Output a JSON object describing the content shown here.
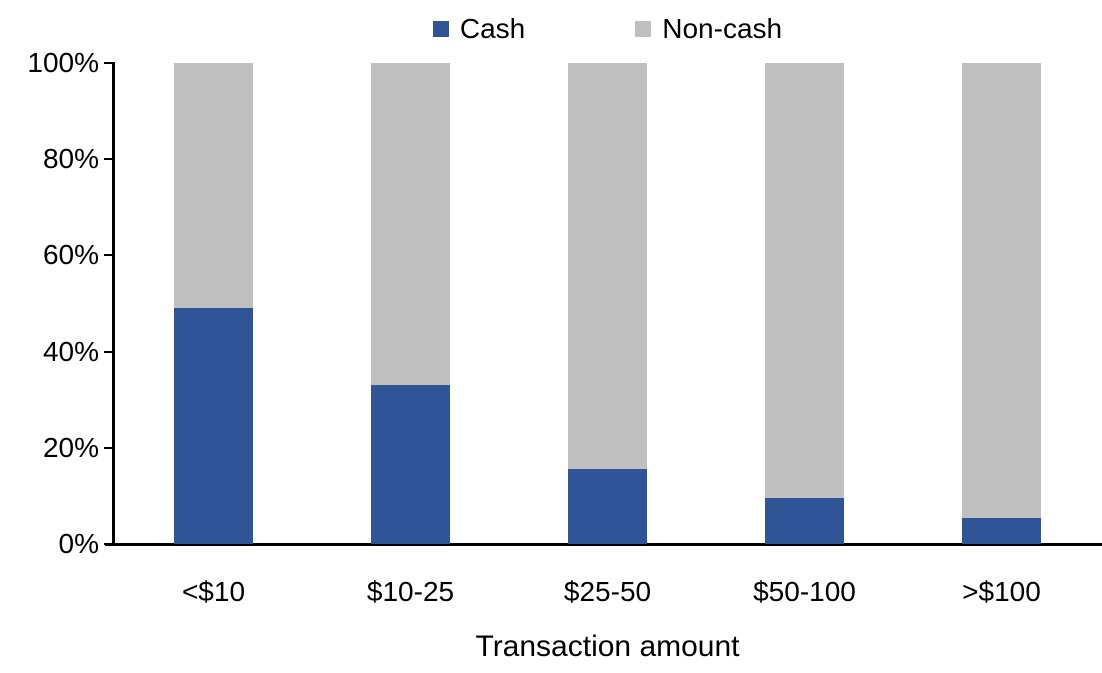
{
  "chart_data": {
    "type": "bar",
    "stacked": true,
    "orientation": "vertical",
    "categories": [
      "<$10",
      "$10-25",
      "$25-50",
      "$50-100",
      ">$100"
    ],
    "series": [
      {
        "name": "Cash",
        "color": "#2F5597",
        "values": [
          49,
          33,
          15.5,
          9.5,
          5.5
        ]
      },
      {
        "name": "Non-cash",
        "color": "#BFBFBF",
        "values": [
          51,
          67,
          84.5,
          90.5,
          94.5
        ]
      }
    ],
    "title": "",
    "xlabel": "Transaction amount",
    "ylabel": "",
    "ylim": [
      0,
      100
    ],
    "ytick_step": 20,
    "yticks": [
      "0%",
      "20%",
      "40%",
      "60%",
      "80%",
      "100%"
    ],
    "legend_position": "top-center",
    "grid": false,
    "axis_color": "#000000",
    "background_color": "#FFFFFF"
  }
}
